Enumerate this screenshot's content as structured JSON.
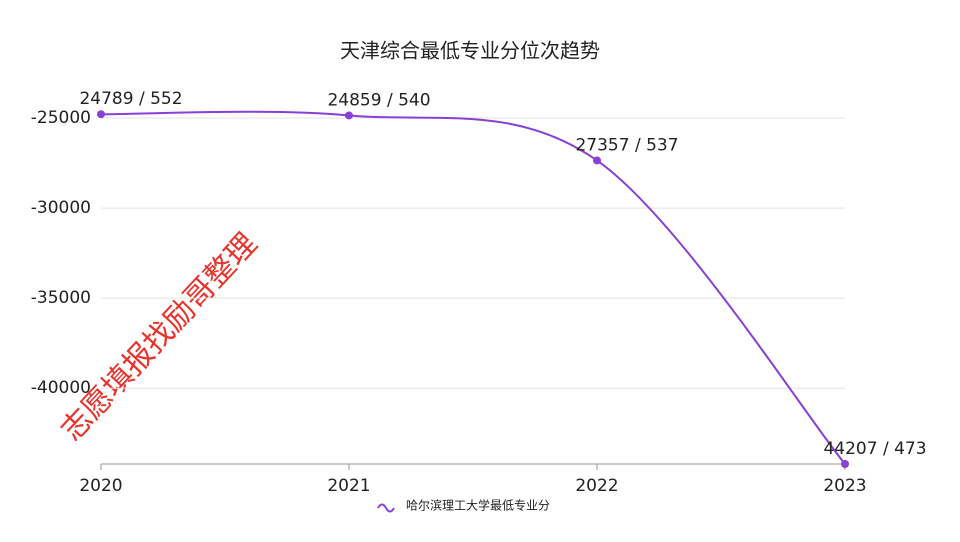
{
  "chart_data": {
    "type": "line",
    "title": "天津综合最低专业分位次趋势",
    "categories": [
      "2020",
      "2021",
      "2022",
      "2023"
    ],
    "series": [
      {
        "name": "哈尔滨理工大学最低专业分",
        "color": "#8a3fd6",
        "values": [
          -24789,
          -24859,
          -27357,
          -44207
        ],
        "value_labels": [
          "24789 / 552",
          "24859 / 540",
          "27357 / 537",
          "44207 / 473"
        ]
      }
    ],
    "ylim": [
      -44207,
      -24000
    ],
    "yticks": [
      -25000,
      -30000,
      -35000,
      -40000
    ],
    "grid": true,
    "smooth": true,
    "legend": "bottom",
    "watermark": "志愿填报找励哥整理"
  }
}
